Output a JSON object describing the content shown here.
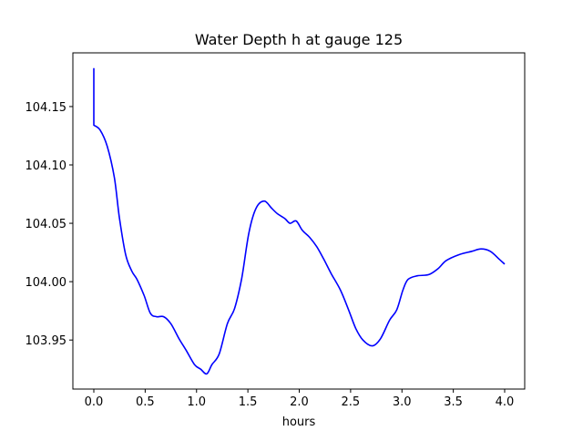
{
  "chart_data": {
    "type": "line",
    "title": "Water Depth h at gauge 125",
    "xlabel": "hours",
    "ylabel": "",
    "xlim": [
      -0.204,
      4.195
    ],
    "ylim": [
      103.908,
      104.196
    ],
    "xticks": [
      0.0,
      0.5,
      1.0,
      1.5,
      2.0,
      2.5,
      3.0,
      3.5,
      4.0
    ],
    "xtick_labels": [
      "0.0",
      "0.5",
      "1.0",
      "1.5",
      "2.0",
      "2.5",
      "3.0",
      "3.5",
      "4.0"
    ],
    "yticks": [
      103.95,
      104.0,
      104.05,
      104.1,
      104.15
    ],
    "ytick_labels": [
      "103.95",
      "104.00",
      "104.05",
      "104.10",
      "104.15"
    ],
    "grid": false,
    "series": [
      {
        "name": "h",
        "color": "#0000ff",
        "x": [
          0,
          0,
          0.06,
          0.13,
          0.2,
          0.25,
          0.31,
          0.37,
          0.42,
          0.49,
          0.55,
          0.61,
          0.68,
          0.75,
          0.83,
          0.9,
          0.98,
          1.04,
          1.1,
          1.15,
          1.22,
          1.3,
          1.37,
          1.44,
          1.51,
          1.58,
          1.66,
          1.73,
          1.79,
          1.86,
          1.91,
          1.97,
          2.03,
          2.1,
          2.17,
          2.24,
          2.31,
          2.4,
          2.48,
          2.55,
          2.62,
          2.71,
          2.79,
          2.88,
          2.95,
          3.01,
          3.06,
          3.15,
          3.26,
          3.35,
          3.43,
          3.55,
          3.68,
          3.77,
          3.86,
          3.95,
          4.0
        ],
        "y": [
          104.183,
          104.134,
          104.13,
          104.116,
          104.089,
          104.054,
          104.023,
          104.009,
          104.002,
          103.988,
          103.973,
          103.97,
          103.97,
          103.964,
          103.951,
          103.941,
          103.929,
          103.925,
          103.921,
          103.929,
          103.938,
          103.964,
          103.977,
          104.003,
          104.042,
          104.063,
          104.069,
          104.063,
          104.058,
          104.054,
          104.05,
          104.052,
          104.044,
          104.038,
          104.03,
          104.019,
          104.007,
          103.993,
          103.976,
          103.96,
          103.95,
          103.945,
          103.951,
          103.967,
          103.976,
          103.993,
          104.002,
          104.005,
          104.006,
          104.011,
          104.018,
          104.023,
          104.026,
          104.028,
          104.026,
          104.019,
          104.015
        ]
      }
    ]
  }
}
